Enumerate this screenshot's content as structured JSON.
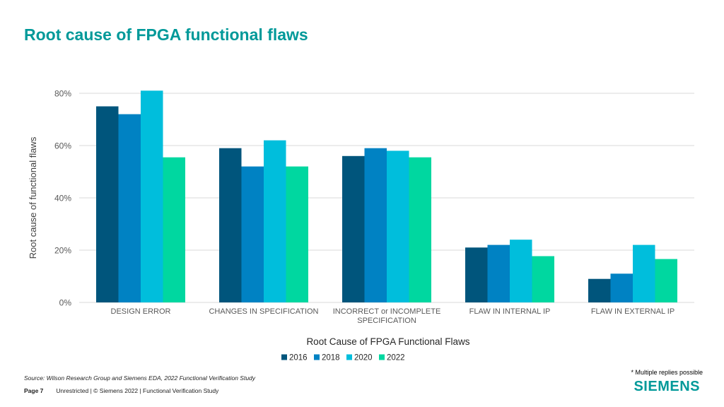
{
  "slide": {
    "title": "Root cause of FPGA functional flaws",
    "note": "* Multiple replies possible",
    "source": "Source:  Wilson Research Group and Siemens EDA, 2022 Functional Verification Study",
    "page_label": "Page 7",
    "footer_text": "Unrestricted | © Siemens 2022 |  Functional Verification Study",
    "logo": "SIEMENS"
  },
  "colors": {
    "brand": "#009999",
    "grid": "#d9d9d9",
    "axis_text": "#595959"
  },
  "chart_data": {
    "type": "bar",
    "title": "",
    "xlabel": "Root Cause of FPGA Functional Flaws",
    "ylabel": "Root cause of functional flaws",
    "ylim": [
      0,
      80
    ],
    "yticks": [
      0,
      20,
      40,
      60,
      80
    ],
    "ytick_suffix": "%",
    "grid": true,
    "legend_position": "bottom",
    "categories": [
      [
        "DESIGN ERROR"
      ],
      [
        "CHANGES IN SPECIFICATION"
      ],
      [
        "INCORRECT or INCOMPLETE",
        "SPECIFICATION"
      ],
      [
        "FLAW IN INTERNAL IP"
      ],
      [
        "FLAW IN EXTERNAL IP"
      ]
    ],
    "series": [
      {
        "name": "2016",
        "color": "#00557c",
        "values": [
          75,
          59,
          56,
          21,
          9
        ]
      },
      {
        "name": "2018",
        "color": "#0082c3",
        "values": [
          72,
          52,
          59,
          22,
          11
        ]
      },
      {
        "name": "2020",
        "color": "#00bedc",
        "values": [
          81,
          62,
          58,
          24,
          22
        ]
      },
      {
        "name": "2022",
        "color": "#00d7a0",
        "values": [
          55.5,
          52,
          55.5,
          17.7,
          16.6
        ]
      }
    ]
  }
}
